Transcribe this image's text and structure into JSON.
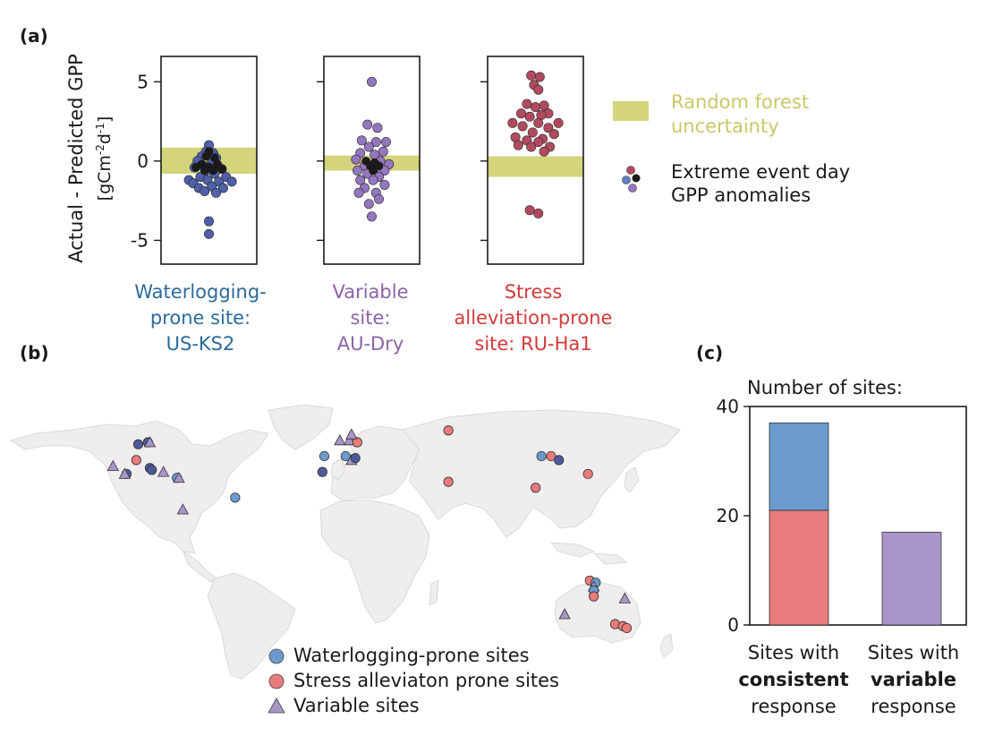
{
  "panels": {
    "a": {
      "label": "(a)"
    },
    "b": {
      "label": "(b)"
    },
    "c": {
      "label": "(c)"
    }
  },
  "colors": {
    "waterlogging": "#5f7fc0",
    "waterlogging_site": "#4f5fa8",
    "variable": "#9476bf",
    "stress": "#b24a5e",
    "uncertainty": "#d3d47c",
    "uncertainty_text": "#c8c86a",
    "extreme_black": "#1a1a1a",
    "map_land": "#efedee",
    "map_border": "#d4d2d3",
    "bar_blue": "#6b9bcc",
    "bar_red": "#e87b7b",
    "bar_purple": "#a896c8",
    "label_blue": "#2b6b9a",
    "label_purple": "#8c63a8",
    "label_red": "#d43a3a"
  },
  "chart_data": [
    {
      "type": "scatter",
      "id": "a",
      "ylabel": "Actual - Predicted GPP",
      "yunit_prefix": "[gCm",
      "yunit_sup1": "-2",
      "yunit_mid": "d",
      "yunit_sup2": "-1",
      "yunit_suffix": "]",
      "ylim": [
        -6.5,
        6.6
      ],
      "yticks": [
        "5",
        "0",
        "-5"
      ],
      "yticks_values": [
        5,
        0,
        -5
      ],
      "legend": {
        "uncertainty": [
          "Random forest",
          "uncertainty"
        ],
        "extreme": [
          "Extreme event day",
          "GPP anomalies"
        ]
      },
      "sites": [
        {
          "name_lines": [
            "Waterlogging-",
            "prone site:",
            "US-KS2"
          ],
          "color_key": "waterlogging_site",
          "label_color_key": "label_blue",
          "band": [
            -0.8,
            0.85
          ],
          "points": [
            [
              0.0,
              1.0
            ],
            [
              -0.2,
              0.6
            ],
            [
              0.3,
              0.5
            ],
            [
              -0.5,
              0.3
            ],
            [
              0.5,
              0.2
            ],
            [
              -0.8,
              0.0
            ],
            [
              0.2,
              -0.1
            ],
            [
              0.6,
              -0.3
            ],
            [
              -0.4,
              -0.3
            ],
            [
              0.0,
              -0.4
            ],
            [
              -1.0,
              -0.4
            ],
            [
              0.9,
              -0.5
            ],
            [
              -0.2,
              -0.6
            ],
            [
              0.4,
              -0.8
            ],
            [
              -0.6,
              -1.0
            ],
            [
              1.2,
              -1.0
            ],
            [
              -1.4,
              -1.2
            ],
            [
              -0.1,
              -1.2
            ],
            [
              0.7,
              -1.3
            ],
            [
              1.6,
              -1.3
            ],
            [
              -1.1,
              -1.4
            ],
            [
              0.2,
              -1.6
            ],
            [
              -0.7,
              -1.7
            ],
            [
              1.0,
              -1.7
            ],
            [
              -0.3,
              -1.9
            ],
            [
              0.5,
              -2.0
            ],
            [
              0.0,
              -3.8
            ],
            [
              0.0,
              -4.6
            ]
          ],
          "black_points": [
            [
              0.0,
              0.6
            ],
            [
              -0.2,
              0.3
            ],
            [
              0.4,
              0.2
            ],
            [
              -0.5,
              -0.2
            ],
            [
              0.6,
              -0.2
            ],
            [
              0.0,
              -0.4
            ],
            [
              -0.9,
              -0.4
            ],
            [
              0.9,
              -0.5
            ],
            [
              -0.3,
              -0.6
            ],
            [
              0.3,
              -0.6
            ]
          ]
        },
        {
          "name_lines": [
            "Variable",
            "site:",
            "AU-Dry"
          ],
          "color_key": "variable",
          "label_color_key": "label_purple",
          "band": [
            -0.6,
            0.35
          ],
          "points": [
            [
              0.0,
              5.0
            ],
            [
              -0.3,
              2.3
            ],
            [
              0.4,
              2.1
            ],
            [
              -0.7,
              1.3
            ],
            [
              1.0,
              1.2
            ],
            [
              0.3,
              1.2
            ],
            [
              -0.2,
              0.9
            ],
            [
              0.8,
              0.6
            ],
            [
              -0.8,
              0.5
            ],
            [
              0.2,
              0.4
            ],
            [
              -1.1,
              0.1
            ],
            [
              0.6,
              0.0
            ],
            [
              1.2,
              -0.2
            ],
            [
              -0.5,
              -0.3
            ],
            [
              0.3,
              -0.4
            ],
            [
              -1.0,
              -0.6
            ],
            [
              0.9,
              -0.6
            ],
            [
              -0.3,
              -0.8
            ],
            [
              0.5,
              -1.0
            ],
            [
              -0.8,
              -1.2
            ],
            [
              0.1,
              -1.2
            ],
            [
              0.9,
              -1.5
            ],
            [
              -0.5,
              -1.7
            ],
            [
              0.3,
              -2.0
            ],
            [
              -0.9,
              -2.0
            ],
            [
              0.5,
              -2.4
            ],
            [
              -0.2,
              -2.7
            ],
            [
              0.0,
              -3.5
            ]
          ],
          "black_points": [
            [
              -0.4,
              0.0
            ],
            [
              0.2,
              -0.1
            ],
            [
              0.5,
              -0.3
            ],
            [
              -0.1,
              -0.3
            ],
            [
              0.1,
              -0.6
            ]
          ]
        },
        {
          "name_lines": [
            "Stress",
            "alleviation-prone",
            "site: RU-Ha1"
          ],
          "color_key": "stress",
          "label_color_key": "label_red",
          "band": [
            -1.0,
            0.3
          ],
          "points": [
            [
              -0.3,
              5.4
            ],
            [
              0.3,
              5.3
            ],
            [
              -0.1,
              4.8
            ],
            [
              0.2,
              4.5
            ],
            [
              -0.6,
              3.6
            ],
            [
              0.6,
              3.5
            ],
            [
              0.0,
              3.4
            ],
            [
              -1.0,
              3.0
            ],
            [
              0.9,
              3.0
            ],
            [
              0.4,
              2.9
            ],
            [
              -0.4,
              2.8
            ],
            [
              -1.6,
              2.4
            ],
            [
              1.6,
              2.4
            ],
            [
              0.2,
              2.4
            ],
            [
              -0.9,
              2.2
            ],
            [
              0.9,
              2.1
            ],
            [
              -0.2,
              1.8
            ],
            [
              1.3,
              1.7
            ],
            [
              -1.4,
              1.5
            ],
            [
              0.5,
              1.4
            ],
            [
              -0.6,
              1.3
            ],
            [
              0.2,
              1.2
            ],
            [
              -1.2,
              1.0
            ],
            [
              1.0,
              0.9
            ],
            [
              -0.3,
              0.9
            ],
            [
              0.6,
              0.6
            ],
            [
              -0.4,
              -3.1
            ],
            [
              0.2,
              -3.3
            ]
          ]
        }
      ]
    },
    {
      "type": "bar",
      "id": "c",
      "title": "Number of sites:",
      "ylim": [
        0,
        40
      ],
      "yticks": [
        "0",
        "20",
        "40"
      ],
      "yticks_values": [
        0,
        20,
        40
      ],
      "categories": [
        {
          "lines": [
            {
              "text": "Sites with",
              "bold": false
            },
            {
              "text": "consistent",
              "bold": true
            },
            {
              "text": "response",
              "bold": false
            }
          ]
        },
        {
          "lines": [
            {
              "text": "Sites with",
              "bold": false
            },
            {
              "text": "variable",
              "bold": true
            },
            {
              "text": "response",
              "bold": false
            }
          ]
        }
      ],
      "stacks": [
        [
          {
            "value": 21,
            "color_key": "bar_red"
          },
          {
            "value": 16,
            "color_key": "bar_blue"
          }
        ],
        [
          {
            "value": 17,
            "color_key": "bar_purple"
          }
        ]
      ]
    }
  ],
  "map": {
    "legend": [
      {
        "shape": "circle",
        "color_key": "bar_blue",
        "label": "Waterlogging-prone sites"
      },
      {
        "shape": "circle",
        "color_key": "bar_red",
        "label": "Stress alleviaton prone sites"
      },
      {
        "shape": "triangle",
        "color_key": "bar_purple",
        "label": "Variable sites"
      }
    ],
    "sites": [
      {
        "lon": -105,
        "lat": 55,
        "kind": "waterlogging",
        "dark": true
      },
      {
        "lon": -100,
        "lat": 56,
        "kind": "waterlogging",
        "dark": true
      },
      {
        "lon": -99,
        "lat": 56,
        "kind": "variable"
      },
      {
        "lon": -106,
        "lat": 47,
        "kind": "stress"
      },
      {
        "lon": -118,
        "lat": 44,
        "kind": "variable"
      },
      {
        "lon": -111,
        "lat": 40,
        "kind": "waterlogging",
        "dark": true
      },
      {
        "lon": -112,
        "lat": 40,
        "kind": "variable"
      },
      {
        "lon": -99,
        "lat": 43,
        "kind": "waterlogging",
        "dark": true
      },
      {
        "lon": -98,
        "lat": 42,
        "kind": "waterlogging",
        "dark": true
      },
      {
        "lon": -92,
        "lat": 41,
        "kind": "variable"
      },
      {
        "lon": -85,
        "lat": 38,
        "kind": "waterlogging"
      },
      {
        "lon": -84,
        "lat": 38,
        "kind": "variable"
      },
      {
        "lon": -82,
        "lat": 22,
        "kind": "variable"
      },
      {
        "lon": -55,
        "lat": 28,
        "kind": "waterlogging"
      },
      {
        "lon": -1,
        "lat": 57,
        "kind": "variable"
      },
      {
        "lon": 4,
        "lat": 57,
        "kind": "variable"
      },
      {
        "lon": 8,
        "lat": 56,
        "kind": "stress"
      },
      {
        "lon": 5,
        "lat": 60,
        "kind": "variable"
      },
      {
        "lon": -9,
        "lat": 49,
        "kind": "waterlogging"
      },
      {
        "lon": 2,
        "lat": 49,
        "kind": "waterlogging"
      },
      {
        "lon": 5,
        "lat": 47,
        "kind": "variable"
      },
      {
        "lon": 7,
        "lat": 48,
        "kind": "waterlogging",
        "dark": true
      },
      {
        "lon": -10,
        "lat": 41,
        "kind": "waterlogging",
        "dark": true
      },
      {
        "lon": 55,
        "lat": 62,
        "kind": "stress"
      },
      {
        "lon": 103,
        "lat": 49,
        "kind": "waterlogging"
      },
      {
        "lon": 108,
        "lat": 49,
        "kind": "stress"
      },
      {
        "lon": 112,
        "lat": 47,
        "kind": "waterlogging",
        "dark": true
      },
      {
        "lon": 127,
        "lat": 40,
        "kind": "stress"
      },
      {
        "lon": 55,
        "lat": 36,
        "kind": "stress"
      },
      {
        "lon": 100,
        "lat": 33,
        "kind": "stress"
      },
      {
        "lon": 128,
        "lat": -14,
        "kind": "stress"
      },
      {
        "lon": 131,
        "lat": -15,
        "kind": "waterlogging"
      },
      {
        "lon": 130,
        "lat": -17,
        "kind": "variable"
      },
      {
        "lon": 130,
        "lat": -19,
        "kind": "waterlogging"
      },
      {
        "lon": 130,
        "lat": -22,
        "kind": "stress"
      },
      {
        "lon": 115,
        "lat": -31,
        "kind": "variable"
      },
      {
        "lon": 146,
        "lat": -23,
        "kind": "variable"
      },
      {
        "lon": 141,
        "lat": -36,
        "kind": "stress"
      },
      {
        "lon": 145,
        "lat": -37,
        "kind": "stress"
      },
      {
        "lon": 147,
        "lat": -38,
        "kind": "stress"
      }
    ]
  }
}
